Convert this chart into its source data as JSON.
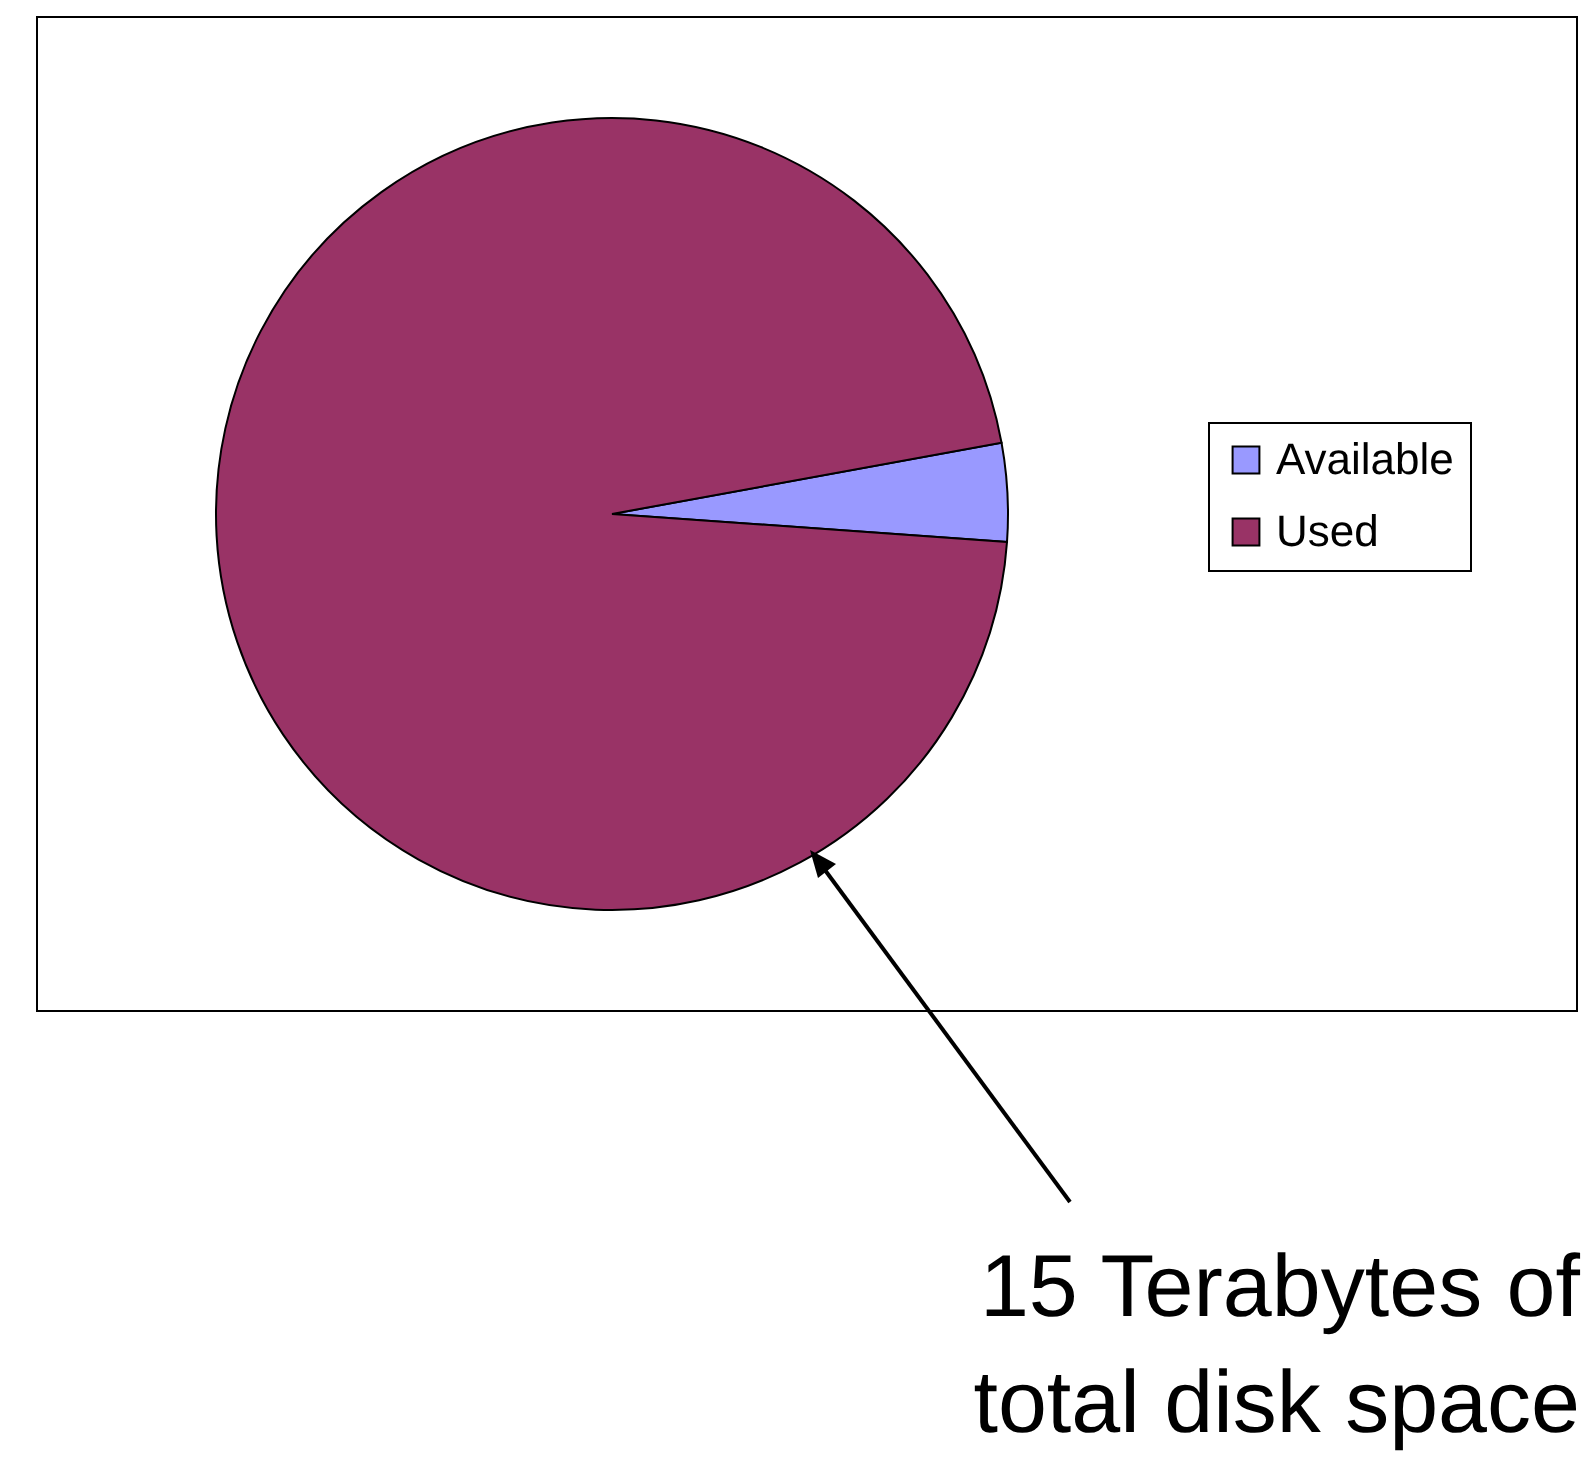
{
  "chart_data": {
    "type": "pie",
    "categories": [
      "Available",
      "Used"
    ],
    "values": [
      4,
      96
    ],
    "colors": [
      "#9999ff",
      "#993366"
    ],
    "legend": "right",
    "annotations": [
      "15 Terabytes of total disk space"
    ]
  }
}
